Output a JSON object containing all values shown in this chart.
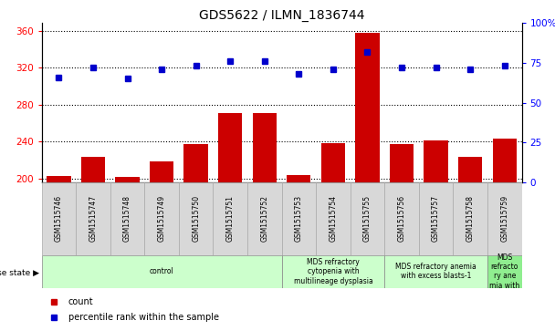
{
  "title": "GDS5622 / ILMN_1836744",
  "samples": [
    "GSM1515746",
    "GSM1515747",
    "GSM1515748",
    "GSM1515749",
    "GSM1515750",
    "GSM1515751",
    "GSM1515752",
    "GSM1515753",
    "GSM1515754",
    "GSM1515755",
    "GSM1515756",
    "GSM1515757",
    "GSM1515758",
    "GSM1515759"
  ],
  "counts": [
    203,
    223,
    202,
    218,
    237,
    271,
    271,
    204,
    238,
    358,
    237,
    241,
    223,
    243
  ],
  "percentile_ranks": [
    66,
    72,
    65,
    71,
    73,
    76,
    76,
    68,
    71,
    82,
    72,
    72,
    71,
    73
  ],
  "ylim_left": [
    196,
    368
  ],
  "ylim_right": [
    0,
    100
  ],
  "yticks_left": [
    200,
    240,
    280,
    320,
    360
  ],
  "yticks_right": [
    0,
    25,
    50,
    75,
    100
  ],
  "bar_color": "#cc0000",
  "dot_color": "#0000cc",
  "disease_groups": [
    {
      "label": "control",
      "start": 0,
      "end": 7,
      "color": "#ccffcc"
    },
    {
      "label": "MDS refractory\ncytopenia with\nmultilineage dysplasia",
      "start": 7,
      "end": 10,
      "color": "#ccffcc"
    },
    {
      "label": "MDS refractory anemia\nwith excess blasts-1",
      "start": 10,
      "end": 13,
      "color": "#ccffcc"
    },
    {
      "label": "MDS\nrefracto\nry ane\nmia with",
      "start": 13,
      "end": 14,
      "color": "#90ee90"
    }
  ],
  "xlabel_disease": "disease state",
  "legend_count": "count",
  "legend_percentile": "percentile rank within the sample",
  "sample_box_color": "#d8d8d8",
  "right_axis_top_label": "100%"
}
